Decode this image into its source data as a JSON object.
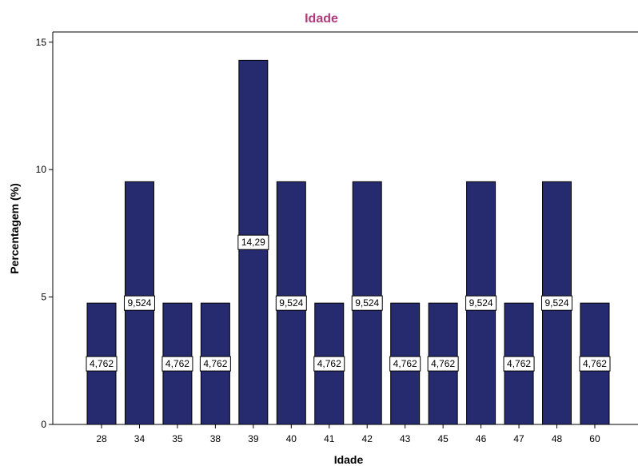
{
  "chart_data": {
    "type": "bar",
    "title": "Idade",
    "xlabel": "Idade",
    "ylabel": "Percentagem (%)",
    "categories": [
      "28",
      "34",
      "35",
      "38",
      "39",
      "40",
      "41",
      "42",
      "43",
      "45",
      "46",
      "47",
      "48",
      "60"
    ],
    "values": [
      4.762,
      9.524,
      4.762,
      4.762,
      14.29,
      9.524,
      4.762,
      9.524,
      4.762,
      4.762,
      9.524,
      4.762,
      9.524,
      4.762
    ],
    "data_labels": [
      "4,762",
      "9,524",
      "4,762",
      "4,762",
      "14,29",
      "9,524",
      "4,762",
      "9,524",
      "4,762",
      "4,762",
      "9,524",
      "4,762",
      "9,524",
      "4,762"
    ],
    "ylim": [
      0,
      15.4
    ],
    "yticks": [
      0,
      5,
      10,
      15
    ],
    "ytick_labels": [
      "0",
      "5",
      "10",
      "15"
    ],
    "grid": false,
    "colors": {
      "bar": "#262B70",
      "title": "#B03A7A",
      "axis": "#000000"
    }
  }
}
